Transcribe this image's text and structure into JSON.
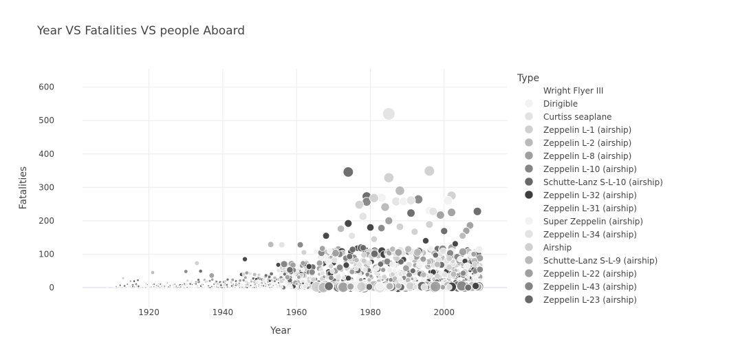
{
  "chart_data": {
    "type": "scatter",
    "title": "Year VS Fatalities VS people Aboard",
    "xlabel": "Year",
    "ylabel": "Fatalities",
    "xlim": [
      1902,
      2017
    ],
    "ylim": [
      -60,
      655
    ],
    "x_ticks": [
      1920,
      1940,
      1960,
      1980,
      2000
    ],
    "y_ticks": [
      0,
      100,
      200,
      300,
      400,
      500,
      600
    ],
    "grid": true,
    "size_encodes": "people Aboard",
    "legend": {
      "title": "Type",
      "position": "right",
      "entries": [
        {
          "label": "Wright Flyer III",
          "color": "#ffffff"
        },
        {
          "label": "Dirigible",
          "color": "#f2f2f2"
        },
        {
          "label": "Curtiss seaplane",
          "color": "#e3e3e3"
        },
        {
          "label": "Zeppelin L-1 (airship)",
          "color": "#d0d0d0"
        },
        {
          "label": "Zeppelin L-2 (airship)",
          "color": "#b9b9b9"
        },
        {
          "label": "Zeppelin L-8 (airship)",
          "color": "#9f9f9f"
        },
        {
          "label": "Zeppelin L-10 (airship)",
          "color": "#858585"
        },
        {
          "label": "Schutte-Lanz S-L-10 (airship)",
          "color": "#686868"
        },
        {
          "label": "Zeppelin L-32 (airship)",
          "color": "#3e3e3e"
        },
        {
          "label": "Zeppelin L-31 (airship)",
          "color": "#ffffff"
        },
        {
          "label": "Super Zeppelin (airship)",
          "color": "#f2f2f2"
        },
        {
          "label": "Zeppelin L-34 (airship)",
          "color": "#e3e3e3"
        },
        {
          "label": "Airship",
          "color": "#d0d0d0"
        },
        {
          "label": "Schutte-Lanz S-L-9 (airship)",
          "color": "#b9b9b9"
        },
        {
          "label": "Zeppelin L-22 (airship)",
          "color": "#9f9f9f"
        },
        {
          "label": "Zeppelin L-43 (airship)",
          "color": "#858585"
        },
        {
          "label": "Zeppelin L-23 (airship)",
          "color": "#686868"
        }
      ]
    },
    "highlight_points": [
      {
        "year": 1985,
        "fatalities": 520,
        "aboard": 524,
        "color": "#e3e3e3"
      },
      {
        "year": 1974,
        "fatalities": 346,
        "aboard": 346,
        "color": "#686868"
      },
      {
        "year": 1985,
        "fatalities": 329,
        "aboard": 329,
        "color": "#d0d0d0"
      },
      {
        "year": 1996,
        "fatalities": 349,
        "aboard": 349,
        "color": "#d0d0d0"
      },
      {
        "year": 1988,
        "fatalities": 290,
        "aboard": 290,
        "color": "#b9b9b9"
      },
      {
        "year": 1979,
        "fatalities": 273,
        "aboard": 273,
        "color": "#686868"
      },
      {
        "year": 2002,
        "fatalities": 275,
        "aboard": 275,
        "color": "#d0d0d0"
      },
      {
        "year": 1993,
        "fatalities": 264,
        "aboard": 264,
        "color": "#858585"
      },
      {
        "year": 1979,
        "fatalities": 257,
        "aboard": 257,
        "color": "#858585"
      },
      {
        "year": 1987,
        "fatalities": 258,
        "aboard": 258,
        "color": "#e3e3e3"
      },
      {
        "year": 1989,
        "fatalities": 258,
        "aboard": 258,
        "color": "#f2f2f2"
      },
      {
        "year": 1983,
        "fatalities": 269,
        "aboard": 269,
        "color": "#f2f2f2"
      },
      {
        "year": 1981,
        "fatalities": 268,
        "aboard": 268,
        "color": "#d0d0d0"
      },
      {
        "year": 1991,
        "fatalities": 261,
        "aboard": 261,
        "color": "#e3e3e3"
      },
      {
        "year": 2001,
        "fatalities": 260,
        "aboard": 260,
        "color": "#f2f2f2"
      },
      {
        "year": 1984,
        "fatalities": 241,
        "aboard": 241,
        "color": "#b9b9b9"
      },
      {
        "year": 1977,
        "fatalities": 248,
        "aboard": 248,
        "color": "#d0d0d0"
      },
      {
        "year": 1996,
        "fatalities": 230,
        "aboard": 230,
        "color": "#f2f2f2"
      },
      {
        "year": 1997,
        "fatalities": 228,
        "aboard": 228,
        "color": "#e3e3e3"
      },
      {
        "year": 1991,
        "fatalities": 223,
        "aboard": 223,
        "color": "#686868"
      },
      {
        "year": 2002,
        "fatalities": 225,
        "aboard": 225,
        "color": "#9f9f9f"
      },
      {
        "year": 2009,
        "fatalities": 228,
        "aboard": 228,
        "color": "#686868"
      },
      {
        "year": 1999,
        "fatalities": 217,
        "aboard": 217,
        "color": "#9f9f9f"
      },
      {
        "year": 1978,
        "fatalities": 213,
        "aboard": 213,
        "color": "#e3e3e3"
      },
      {
        "year": 1985,
        "fatalities": 200,
        "aboard": 200,
        "color": "#9f9f9f"
      },
      {
        "year": 1974,
        "fatalities": 192,
        "aboard": 192,
        "color": "#3e3e3e"
      },
      {
        "year": 2007,
        "fatalities": 186,
        "aboard": 186,
        "color": "#9f9f9f"
      },
      {
        "year": 1996,
        "fatalities": 189,
        "aboard": 189,
        "color": "#d0d0d0"
      },
      {
        "year": 1980,
        "fatalities": 180,
        "aboard": 180,
        "color": "#3e3e3e"
      },
      {
        "year": 1988,
        "fatalities": 182,
        "aboard": 182,
        "color": "#d0d0d0"
      },
      {
        "year": 1983,
        "fatalities": 178,
        "aboard": 178,
        "color": "#858585"
      },
      {
        "year": 1972,
        "fatalities": 176,
        "aboard": 176,
        "color": "#b9b9b9"
      },
      {
        "year": 2000,
        "fatalities": 169,
        "aboard": 169,
        "color": "#686868"
      },
      {
        "year": 2006,
        "fatalities": 170,
        "aboard": 170,
        "color": "#9f9f9f"
      },
      {
        "year": 1992,
        "fatalities": 167,
        "aboard": 167,
        "color": "#d0d0d0"
      },
      {
        "year": 1975,
        "fatalities": 155,
        "aboard": 155,
        "color": "#e3e3e3"
      },
      {
        "year": 1968,
        "fatalities": 155,
        "aboard": 155,
        "color": "#3e3e3e"
      },
      {
        "year": 2005,
        "fatalities": 155,
        "aboard": 155,
        "color": "#b9b9b9"
      },
      {
        "year": 1995,
        "fatalities": 140,
        "aboard": 140,
        "color": "#3e3e3e"
      },
      {
        "year": 1981,
        "fatalities": 145,
        "aboard": 145,
        "color": "#d0d0d0"
      },
      {
        "year": 1961,
        "fatalities": 128,
        "aboard": 128,
        "color": "#858585"
      },
      {
        "year": 1953,
        "fatalities": 129,
        "aboard": 129,
        "color": "#b9b9b9"
      },
      {
        "year": 1956,
        "fatalities": 128,
        "aboard": 128,
        "color": "#e3e3e3"
      },
      {
        "year": 2003,
        "fatalities": 131,
        "aboard": 131,
        "color": "#3e3e3e"
      },
      {
        "year": 1969,
        "fatalities": 110,
        "aboard": 110,
        "color": "#f2f2f2"
      },
      {
        "year": 1962,
        "fatalities": 105,
        "aboard": 105,
        "color": "#d0d0d0"
      },
      {
        "year": 1967,
        "fatalities": 117,
        "aboard": 117,
        "color": "#9f9f9f"
      },
      {
        "year": 1986,
        "fatalities": 115,
        "aboard": 115,
        "color": "#b9b9b9"
      },
      {
        "year": 2008,
        "fatalities": 100,
        "aboard": 100,
        "color": "#9f9f9f"
      },
      {
        "year": 1946,
        "fatalities": 85,
        "aboard": 85,
        "color": "#3e3e3e"
      },
      {
        "year": 1933,
        "fatalities": 73,
        "aboard": 76,
        "color": "#d0d0d0"
      },
      {
        "year": 1930,
        "fatalities": 48,
        "aboard": 54,
        "color": "#858585"
      },
      {
        "year": 1934,
        "fatalities": 49,
        "aboard": 49,
        "color": "#686868"
      },
      {
        "year": 1937,
        "fatalities": 36,
        "aboard": 97,
        "color": "#9f9f9f"
      },
      {
        "year": 1921,
        "fatalities": 45,
        "aboard": 50,
        "color": "#b9b9b9"
      },
      {
        "year": 1913,
        "fatalities": 28,
        "aboard": 28,
        "color": "#d0d0d0"
      },
      {
        "year": 1915,
        "fatalities": 19,
        "aboard": 19,
        "color": "#9f9f9f"
      },
      {
        "year": 1917,
        "fatalities": 22,
        "aboard": 22,
        "color": "#686868"
      },
      {
        "year": 1916,
        "fatalities": 19,
        "aboard": 19,
        "color": "#3e3e3e"
      },
      {
        "year": 1925,
        "fatalities": 14,
        "aboard": 14,
        "color": "#b9b9b9"
      }
    ],
    "bulk_points_note": "Dense cloud of several thousand crashes, 1908-2009, concentrated below 100 fatalities and growing denser after 1945 (partially synthesized for reconstruction)."
  }
}
